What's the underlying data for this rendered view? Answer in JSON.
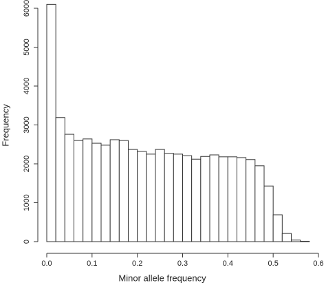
{
  "chart_data": {
    "type": "histogram",
    "xlabel": "Minor allele frequency",
    "ylabel": "Frequency",
    "bins": [
      0,
      0.02,
      0.04,
      0.06,
      0.08,
      0.1,
      0.12,
      0.14,
      0.16,
      0.18,
      0.2,
      0.22,
      0.24,
      0.26,
      0.28,
      0.3,
      0.32,
      0.34,
      0.36,
      0.38,
      0.4,
      0.42,
      0.44,
      0.46,
      0.48,
      0.5,
      0.52,
      0.54,
      0.56,
      0.58
    ],
    "counts": [
      6100,
      3190,
      2760,
      2600,
      2640,
      2530,
      2480,
      2620,
      2600,
      2370,
      2320,
      2250,
      2370,
      2270,
      2250,
      2210,
      2120,
      2190,
      2230,
      2180,
      2180,
      2160,
      2110,
      1950,
      1430,
      690,
      210,
      40,
      10
    ],
    "color": "#ffffff",
    "xlim": [
      0,
      0.6
    ],
    "xticks": [
      {
        "value": 0,
        "label": "0.0"
      },
      0.1,
      0.2,
      0.3,
      0.4,
      0.5,
      0.6
    ],
    "ylim": [
      0,
      6000
    ],
    "yticks": [
      0,
      1000,
      2000,
      3000,
      4000,
      5000,
      6000
    ]
  }
}
